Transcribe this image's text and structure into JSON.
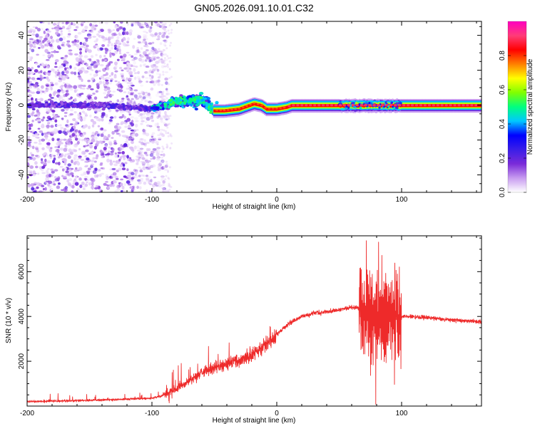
{
  "title": "GN05.2026.091.10.01.C32",
  "chart_data": [
    {
      "type": "heatmap",
      "xlabel": "Height of straight line (km)",
      "ylabel": "Frequency (Hz)",
      "xlim": [
        -200,
        164
      ],
      "ylim": [
        -50,
        48
      ],
      "xticks": [
        -200,
        -100,
        0,
        100
      ],
      "yticks": [
        -40,
        -20,
        0,
        20,
        40
      ],
      "colorbar": {
        "label": "Normalized spectral amplitude",
        "range": [
          0,
          1
        ],
        "ticks": [
          0.0,
          0.2,
          0.4,
          0.6,
          0.8
        ],
        "stops": [
          "#ffffff",
          "#c89cf0",
          "#7a2bd9",
          "#3a1ee8",
          "#0000ff",
          "#00c8ff",
          "#00ff80",
          "#80ff00",
          "#ffff00",
          "#ff8000",
          "#ff0000",
          "#ff3c78",
          "#ff00c0"
        ]
      },
      "ridge": {
        "points": [
          [
            -200,
            0
          ],
          [
            -150,
            0
          ],
          [
            -120,
            -1
          ],
          [
            -100,
            -2
          ],
          [
            -80,
            2
          ],
          [
            -60,
            3
          ],
          [
            -50,
            -3
          ],
          [
            -42,
            -3
          ],
          [
            -30,
            -2
          ],
          [
            -22,
            0
          ],
          [
            -18,
            1
          ],
          [
            -12,
            0
          ],
          [
            -8,
            -2
          ],
          [
            0,
            -2
          ],
          [
            8,
            -1
          ],
          [
            12,
            0
          ],
          [
            60,
            0
          ],
          [
            100,
            0
          ],
          [
            164,
            0
          ]
        ]
      }
    },
    {
      "type": "line",
      "xlabel": "Height of straight line (km)",
      "ylabel": "SNR (10 * v/v)",
      "xlim": [
        -200,
        164
      ],
      "ylim": [
        0,
        7600
      ],
      "xticks": [
        -200,
        -100,
        0,
        100
      ],
      "yticks": [
        2000,
        4000,
        6000
      ],
      "color": "#ee2a2a",
      "envelope": {
        "x": [
          -200,
          -150,
          -100,
          -90,
          -80,
          -70,
          -60,
          -50,
          -40,
          -30,
          -20,
          -10,
          0,
          10,
          20,
          30,
          40,
          50,
          60,
          66,
          70,
          80,
          90,
          100,
          120,
          140,
          164
        ],
        "y": [
          200,
          250,
          350,
          500,
          800,
          1100,
          1500,
          1750,
          1900,
          2000,
          2300,
          2700,
          3200,
          3700,
          4000,
          4150,
          4200,
          4300,
          4400,
          4400,
          4200,
          4100,
          4100,
          4000,
          3950,
          3850,
          3750
        ]
      }
    }
  ]
}
